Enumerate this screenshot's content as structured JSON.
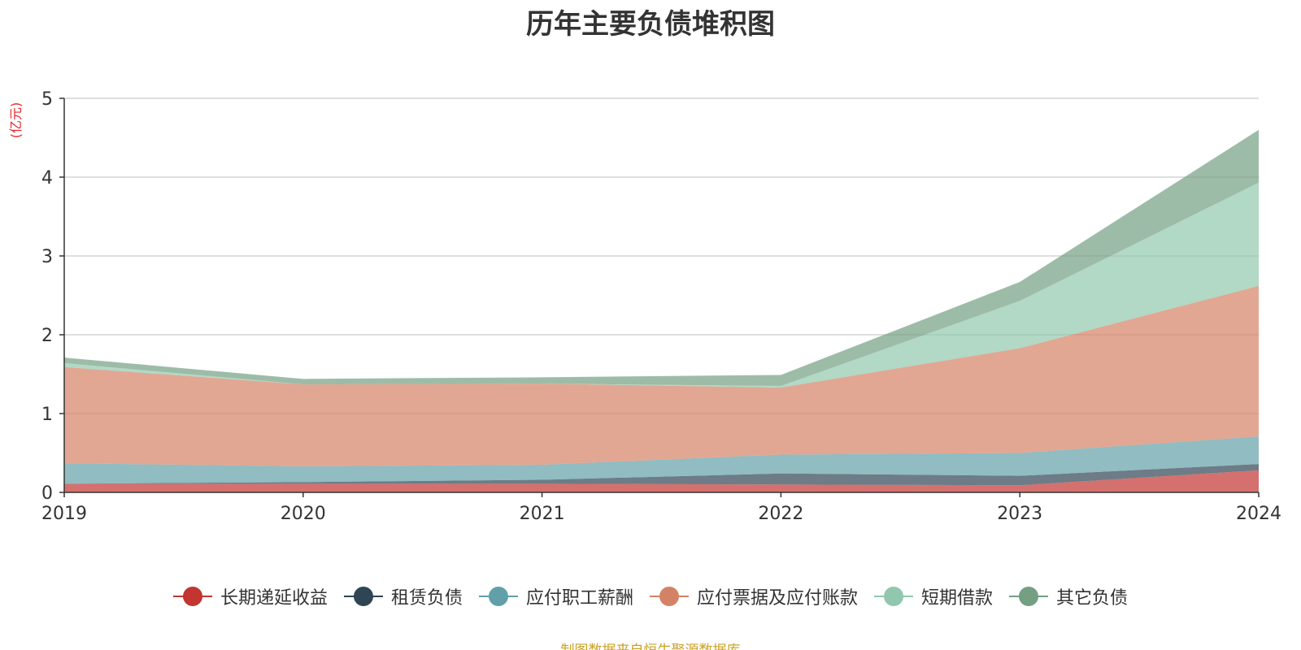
{
  "chart_data": {
    "type": "area",
    "stacked": true,
    "title": "历年主要负债堆积图",
    "unit": "(亿元)",
    "categories": [
      "2019",
      "2020",
      "2021",
      "2022",
      "2023",
      "2024"
    ],
    "ylim": [
      0,
      5
    ],
    "yticks": [
      "0",
      "1",
      "2",
      "3",
      "4",
      "5"
    ],
    "grid": true,
    "legend_position": "bottom",
    "series": [
      {
        "name": "长期递延收益",
        "color": "#c23531",
        "values": [
          0.11,
          0.11,
          0.11,
          0.1,
          0.09,
          0.28
        ]
      },
      {
        "name": "租赁负债",
        "color": "#2f4554",
        "values": [
          0.0,
          0.02,
          0.05,
          0.14,
          0.12,
          0.08
        ]
      },
      {
        "name": "应付职工薪酬",
        "color": "#61a0a8",
        "values": [
          0.26,
          0.2,
          0.19,
          0.24,
          0.29,
          0.35
        ]
      },
      {
        "name": "应付票据及应付账款",
        "color": "#d48265",
        "values": [
          1.22,
          1.04,
          1.03,
          0.85,
          1.33,
          1.91
        ]
      },
      {
        "name": "短期借款",
        "color": "#91c7ae",
        "values": [
          0.05,
          0.0,
          0.0,
          0.02,
          0.6,
          1.31
        ]
      },
      {
        "name": "其它负债",
        "color": "#749f83",
        "values": [
          0.07,
          0.07,
          0.08,
          0.14,
          0.24,
          0.67
        ]
      }
    ]
  },
  "footer": "制图数据来自恒生聚源数据库"
}
